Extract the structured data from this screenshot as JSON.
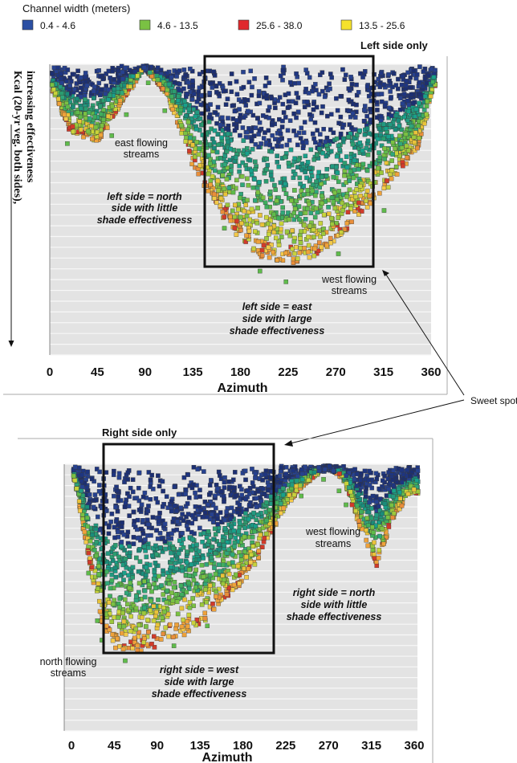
{
  "legend": {
    "title": "Channel width (meters)",
    "items": [
      {
        "label": "0.4 - 4.6",
        "color": "#2b4fa3"
      },
      {
        "label": "4.6 - 13.5",
        "color": "#7ac143"
      },
      {
        "label": "25.6 - 38.0",
        "color": "#e0282d"
      },
      {
        "label": "13.5 - 25.6",
        "color": "#f5e22c"
      }
    ]
  },
  "shared": {
    "y_label_line1": "Kcal (20-yr veg. both sides),",
    "y_label_line2": "increasing effectiveness",
    "sweet_spot": "Sweet spot"
  },
  "chart_data": [
    {
      "type": "scatter",
      "title": "Left side only",
      "xlabel": "Azimuth",
      "ylabel": "Kcal (20-yr veg. both sides), increasing effectiveness",
      "xlim": [
        0,
        360
      ],
      "x_ticks": [
        "0",
        "45",
        "90",
        "135",
        "180",
        "225",
        "270",
        "315",
        "360"
      ],
      "grid": true,
      "series_order": [
        "0.4 - 4.6",
        "4.6 - 13.5",
        "13.5 - 25.6",
        "25.6 - 38.0"
      ],
      "envelope_depth_fraction": [
        [
          3,
          0.1
        ],
        [
          20,
          0.25
        ],
        [
          45,
          0.3
        ],
        [
          70,
          0.12
        ],
        [
          90,
          0.0
        ],
        [
          110,
          0.1
        ],
        [
          135,
          0.38
        ],
        [
          160,
          0.56
        ],
        [
          180,
          0.67
        ],
        [
          200,
          0.74
        ],
        [
          225,
          0.77
        ],
        [
          250,
          0.75
        ],
        [
          275,
          0.66
        ],
        [
          300,
          0.54
        ],
        [
          320,
          0.47
        ],
        [
          350,
          0.3
        ],
        [
          363,
          0.07
        ]
      ],
      "annotations": [
        {
          "line1": "east flowing",
          "line2": "streams",
          "style": "plain"
        },
        {
          "line1": "left side = north",
          "line2": "side with little",
          "line3": "shade effectiveness",
          "style": "italic"
        },
        {
          "line1": "west flowing",
          "line2": "streams",
          "style": "plain"
        },
        {
          "line1": "left side = east",
          "line2": "side with large",
          "line3": "shade effectiveness",
          "style": "italic"
        }
      ],
      "highlight_box_azimuth": [
        150,
        305
      ]
    },
    {
      "type": "scatter",
      "title": "Right side only",
      "xlabel": "Azimuth",
      "ylabel": "",
      "xlim": [
        0,
        360
      ],
      "x_ticks": [
        "0",
        "45",
        "90",
        "135",
        "180",
        "225",
        "270",
        "315",
        "360"
      ],
      "grid": true,
      "series_order": [
        "0.4 - 4.6",
        "4.6 - 13.5",
        "13.5 - 25.6",
        "25.6 - 38.0"
      ],
      "envelope_depth_fraction": [
        [
          3,
          0.05
        ],
        [
          30,
          0.6
        ],
        [
          45,
          0.7
        ],
        [
          70,
          0.72
        ],
        [
          100,
          0.68
        ],
        [
          130,
          0.63
        ],
        [
          160,
          0.52
        ],
        [
          190,
          0.4
        ],
        [
          210,
          0.25
        ],
        [
          235,
          0.1
        ],
        [
          255,
          0.03
        ],
        [
          270,
          0.0
        ],
        [
          285,
          0.04
        ],
        [
          305,
          0.25
        ],
        [
          320,
          0.4
        ],
        [
          335,
          0.22
        ],
        [
          355,
          0.1
        ]
      ],
      "annotations": [
        {
          "line1": "west flowing",
          "line2": "streams",
          "style": "plain"
        },
        {
          "line1": "right side = north",
          "line2": "side with little",
          "line3": "shade effectiveness",
          "style": "italic"
        },
        {
          "line1": "north flowing",
          "line2": "streams",
          "style": "plain"
        },
        {
          "line1": "right side = west",
          "line2": "side with large",
          "line3": "shade effectiveness",
          "style": "italic"
        }
      ],
      "highlight_box_azimuth": [
        38,
        215
      ]
    }
  ]
}
